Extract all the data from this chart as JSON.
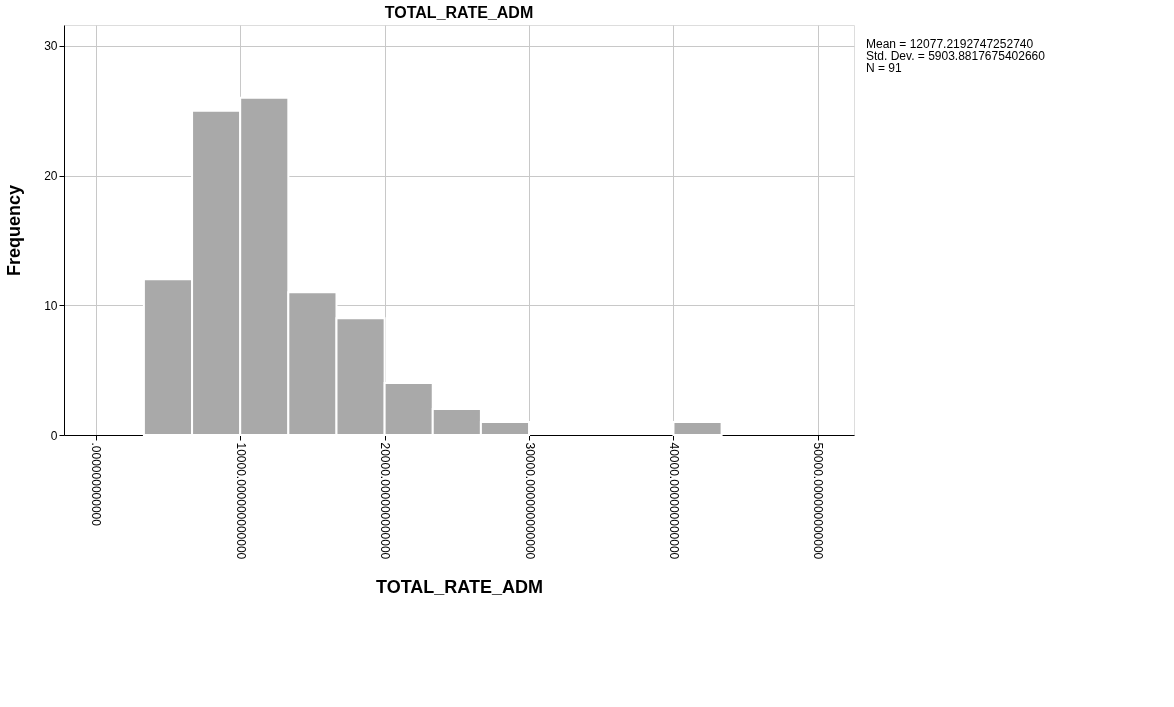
{
  "chart_data": {
    "type": "histogram",
    "title": "TOTAL_RATE_ADM",
    "xlabel": "TOTAL_RATE_ADM",
    "ylabel": "Frequency",
    "bins": [
      3333,
      6667,
      10000,
      13333,
      16667,
      20000,
      23333,
      26667,
      30000,
      33333,
      36667,
      40000,
      43333
    ],
    "values": [
      12,
      25,
      26,
      11,
      9,
      4,
      2,
      1,
      0,
      0,
      0,
      1
    ],
    "color": "#a9a9a9",
    "xlim": [
      -2200,
      52500
    ],
    "xticks": [
      {
        "value": 0,
        "label": ".000000000000"
      },
      {
        "value": 10000,
        "label": "10000.000000000000"
      },
      {
        "value": 20000,
        "label": "20000.000000000000"
      },
      {
        "value": 30000,
        "label": "30000.000000000000"
      },
      {
        "value": 40000,
        "label": "40000.000000000000"
      },
      {
        "value": 50000,
        "label": "50000.000000000000"
      }
    ],
    "ylim": [
      0,
      31.6
    ],
    "yticks": [
      0,
      10,
      20,
      30
    ],
    "grid": true,
    "annotations": [
      "Mean = 12077.2192747252740",
      "Std. Dev. = 5903.8817675402660",
      "N = 91"
    ]
  }
}
